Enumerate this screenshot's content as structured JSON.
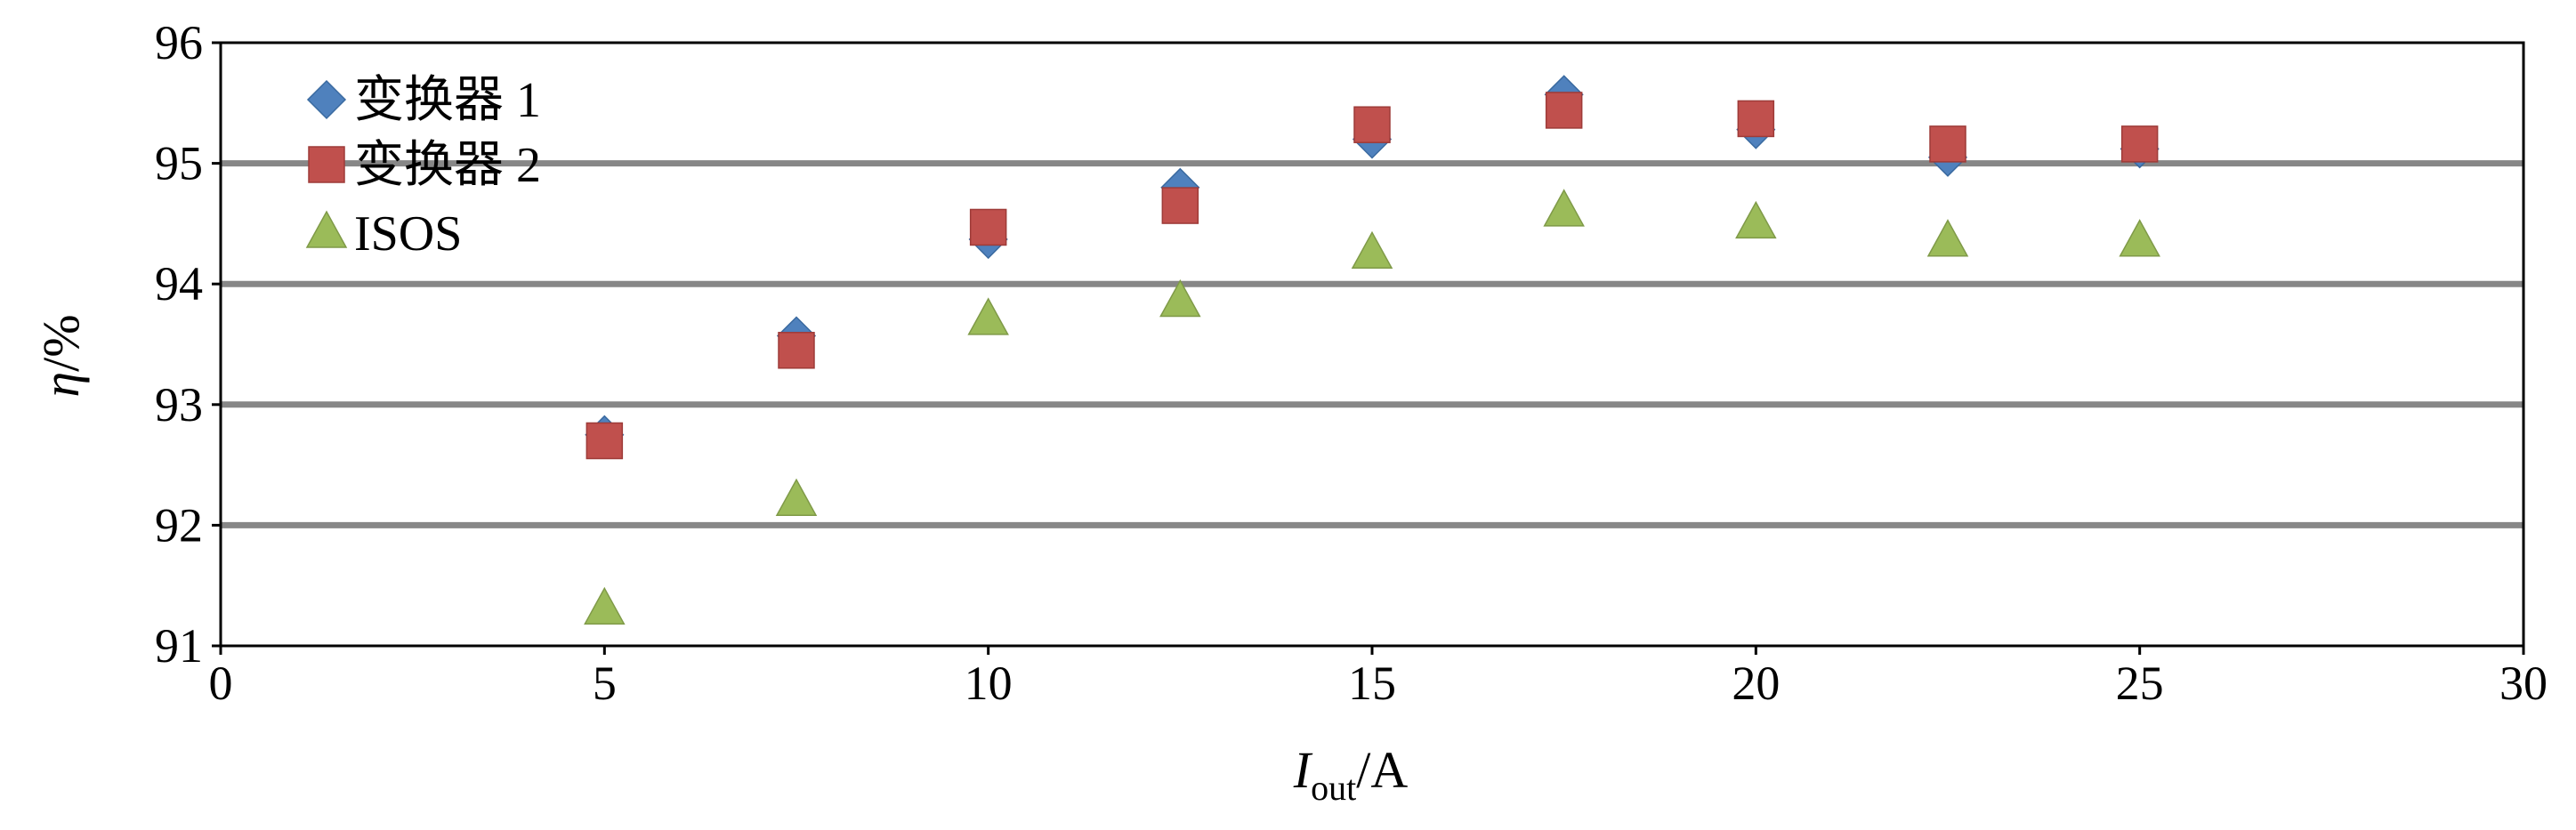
{
  "chart_data": {
    "type": "scatter",
    "xlabel": "I",
    "xlabel_sub": "out",
    "xlabel_unit": "/A",
    "ylabel_sym": "η",
    "ylabel_unit": "/%",
    "xlim": [
      0,
      30
    ],
    "ylim": [
      91,
      96
    ],
    "xticks": [
      0,
      5,
      10,
      15,
      20,
      25,
      30
    ],
    "yticks": [
      91,
      92,
      93,
      94,
      95,
      96
    ],
    "grid": "horizontal",
    "legend_position": "top-left",
    "series": [
      {
        "name": "变换器 1",
        "marker": "diamond",
        "color": "#4f81bd",
        "x": [
          5,
          7.5,
          10,
          12.5,
          15,
          17.5,
          20,
          22.5,
          25
        ],
        "y": [
          92.75,
          93.57,
          94.37,
          94.8,
          95.2,
          95.57,
          95.28,
          95.05,
          95.12
        ]
      },
      {
        "name": "变换器 2",
        "marker": "square",
        "color": "#c0504d",
        "x": [
          5,
          7.5,
          10,
          12.5,
          15,
          17.5,
          20,
          22.5,
          25
        ],
        "y": [
          92.7,
          93.45,
          94.47,
          94.65,
          95.32,
          95.44,
          95.37,
          95.16,
          95.16
        ]
      },
      {
        "name": "ISOS",
        "marker": "triangle",
        "color": "#9bbb59",
        "x": [
          5,
          7.5,
          10,
          12.5,
          15,
          17.5,
          20,
          22.5,
          25
        ],
        "y": [
          91.3,
          92.2,
          93.7,
          93.85,
          94.25,
          94.6,
          94.5,
          94.35,
          94.35
        ]
      }
    ]
  }
}
